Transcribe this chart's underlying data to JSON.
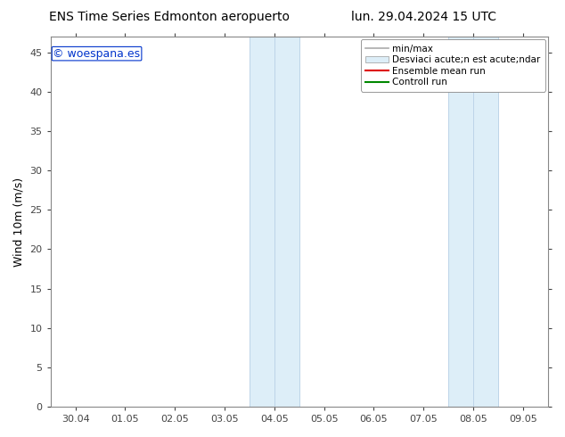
{
  "title_left": "ENS Time Series Edmonton aeropuerto",
  "title_right": "lun. 29.04.2024 15 UTC",
  "ylabel": "Wind 10m (m/s)",
  "ylim": [
    0,
    47
  ],
  "yticks": [
    0,
    5,
    10,
    15,
    20,
    25,
    30,
    35,
    40,
    45
  ],
  "xtick_labels": [
    "30.04",
    "01.05",
    "02.05",
    "03.05",
    "04.05",
    "05.05",
    "06.05",
    "07.05",
    "08.05",
    "09.05"
  ],
  "xtick_pos": [
    0,
    1,
    2,
    3,
    4,
    5,
    6,
    7,
    8,
    9
  ],
  "shade_color": "#ddeef8",
  "shade_regions": [
    [
      3.5,
      4.0
    ],
    [
      4.0,
      4.5
    ],
    [
      7.5,
      8.0
    ],
    [
      8.0,
      8.5
    ]
  ],
  "shade_divider_color": "#bcd4e8",
  "watermark_text": "© woespana.es",
  "watermark_color": "#0033cc",
  "bg_color": "#ffffff",
  "plot_bg": "#ffffff",
  "spine_color": "#888888",
  "tick_color": "#444444",
  "legend_min_max_color": "#aaaaaa",
  "legend_std_color": "#ddeef8",
  "legend_std_edge": "#999999",
  "legend_mean_color": "#dd0000",
  "legend_ctrl_color": "#008800",
  "legend_label_1": "min/max",
  "legend_label_2": "Desviaci acute;n est acute;ndar",
  "legend_label_3": "Ensemble mean run",
  "legend_label_4": "Controll run",
  "font_size_title": 10,
  "font_size_tick": 8,
  "font_size_legend": 7.5,
  "font_size_ylabel": 9,
  "font_size_watermark": 9
}
